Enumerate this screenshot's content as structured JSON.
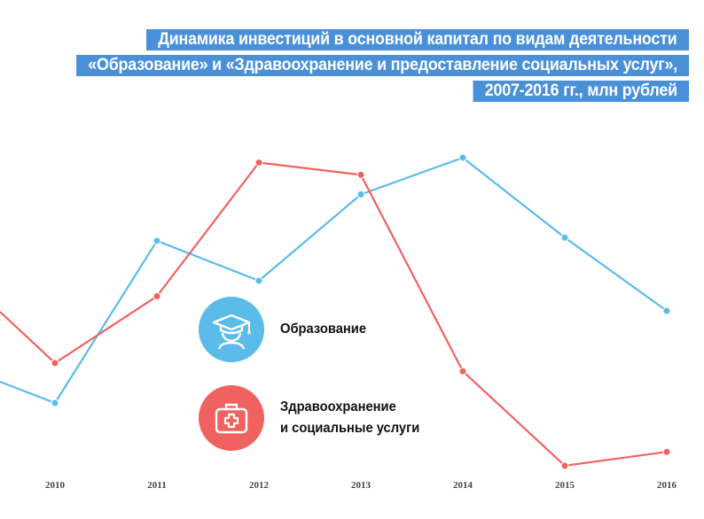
{
  "title": {
    "line1": "Динамика инвестиций в основной капитал по видам деятельности",
    "line2": "«Образование» и «Здравоохранение и предоставление социальных услуг»,",
    "line3": "2007-2016 гг., млн рублей"
  },
  "colors": {
    "education": "#5bbbe9",
    "health": "#f0625f",
    "title_bg": "#4a90d9"
  },
  "icons": {
    "education": "graduate-cap-icon",
    "health": "medical-kit-icon"
  },
  "legend": {
    "education": "Образование",
    "health_line1": "Здравоохранение",
    "health_line2": "и социальные услуги"
  },
  "chart_data": {
    "type": "line",
    "categories": [
      "2010",
      "2011",
      "2012",
      "2013",
      "2014",
      "2015",
      "2016"
    ],
    "series": [
      {
        "name": "Образование",
        "color": "#5bbbe9",
        "values": [
          17.5,
          37.4,
          32.5,
          43.1,
          47.6,
          37.8,
          28.8
        ]
      },
      {
        "name": "Здравоохранение и социальные услуги",
        "color": "#f0625f",
        "values": [
          22.4,
          30.6,
          47.0,
          45.5,
          21.4,
          9.8,
          11.5
        ]
      }
    ],
    "ylim": [
      5,
      55
    ],
    "grid": false,
    "legend_position": "center",
    "xlabel": "",
    "ylabel": ""
  }
}
